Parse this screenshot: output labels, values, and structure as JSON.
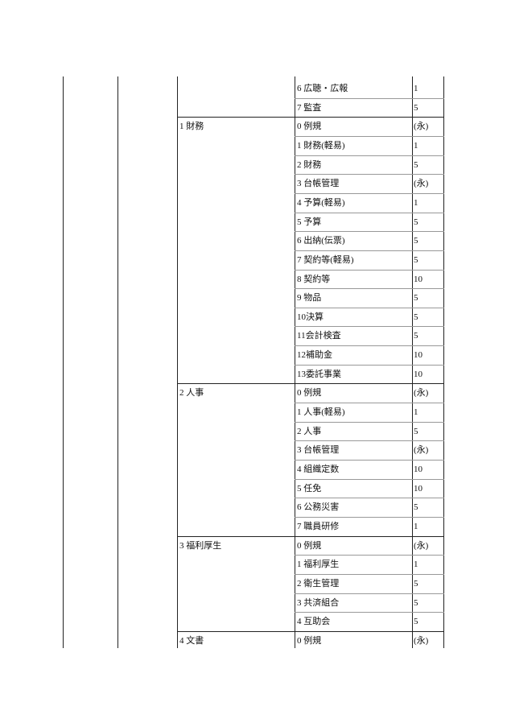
{
  "table": {
    "groups": [
      {
        "rows": [
          [
            "6 広聴・広報",
            "1"
          ],
          [
            "7 監査",
            "5"
          ]
        ]
      },
      {
        "label": "1 財務",
        "rows": [
          [
            "0 例規",
            "(永)"
          ],
          [
            "1 財務(軽易)",
            "1"
          ],
          [
            "2 財務",
            "5"
          ],
          [
            "3 台帳管理",
            "(永)"
          ],
          [
            "4 予算(軽易)",
            "1"
          ],
          [
            "5 予算",
            "5"
          ],
          [
            "6 出納(伝票)",
            "5"
          ],
          [
            "7 契約等(軽易)",
            "5"
          ],
          [
            "8 契約等",
            "10"
          ],
          [
            "9 物品",
            "5"
          ],
          [
            "10決算",
            "5"
          ],
          [
            "11会計検査",
            "5"
          ],
          [
            "12補助金",
            "10"
          ],
          [
            "13委託事業",
            "10"
          ]
        ]
      },
      {
        "label": "2 人事",
        "rows": [
          [
            "0 例規",
            "(永)"
          ],
          [
            "1 人事(軽易)",
            "1"
          ],
          [
            "2 人事",
            "5"
          ],
          [
            "3 台帳管理",
            "(永)"
          ],
          [
            "4 組織定数",
            "10"
          ],
          [
            "5 任免",
            "10"
          ],
          [
            "6 公務災害",
            "5"
          ],
          [
            "7 職員研修",
            "1"
          ]
        ]
      },
      {
        "label": "3 福利厚生",
        "rows": [
          [
            "0 例規",
            "(永)"
          ],
          [
            "1 福利厚生",
            "1"
          ],
          [
            "2 衛生管理",
            "5"
          ],
          [
            "3 共済組合",
            "5"
          ],
          [
            "4 互助会",
            "5"
          ]
        ]
      },
      {
        "label": "4 文書",
        "rows": [
          [
            "0 例規",
            "(永)"
          ]
        ]
      }
    ]
  }
}
